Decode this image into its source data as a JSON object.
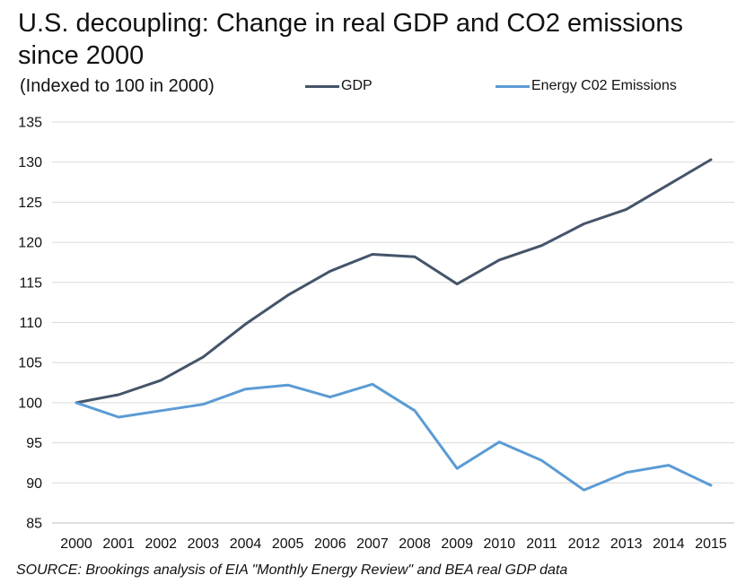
{
  "chart_data": {
    "type": "line",
    "title": "U.S. decoupling: Change in real GDP and CO2 emissions since 2000",
    "subtitle": "(Indexed to 100 in 2000)",
    "xlabel": "",
    "ylabel": "",
    "categories": [
      "2000",
      "2001",
      "2002",
      "2003",
      "2004",
      "2005",
      "2006",
      "2007",
      "2008",
      "2009",
      "2010",
      "2011",
      "2012",
      "2013",
      "2014",
      "2015"
    ],
    "yticks": [
      "85",
      "90",
      "95",
      "100",
      "105",
      "110",
      "115",
      "120",
      "125",
      "130",
      "135"
    ],
    "ylim": [
      85,
      135
    ],
    "grid": true,
    "legend_position": "top",
    "series": [
      {
        "name": "GDP",
        "color": "#44546a",
        "values": [
          100,
          101,
          102.8,
          105.7,
          109.8,
          113.4,
          116.4,
          118.5,
          118.2,
          114.8,
          117.8,
          119.6,
          122.3,
          124.1,
          127.2,
          130.3
        ]
      },
      {
        "name": "Energy C02 Emissions",
        "color": "#5b9bd5",
        "values": [
          100,
          98.2,
          99,
          99.8,
          101.7,
          102.2,
          100.7,
          102.3,
          99,
          91.8,
          95.1,
          92.8,
          89.1,
          91.3,
          92.2,
          89.7
        ]
      }
    ],
    "source": "SOURCE: Brookings analysis of EIA \"Monthly Energy Review\" and BEA real GDP data"
  }
}
